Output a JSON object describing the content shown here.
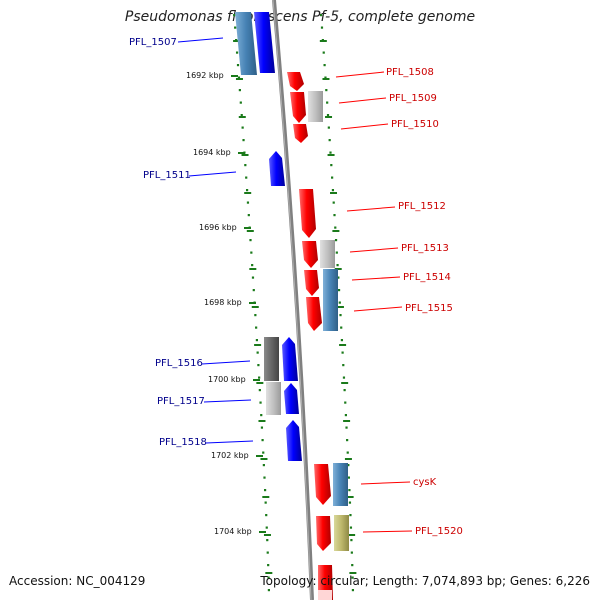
{
  "title": "Pseudomonas fluorescens Pf-5, complete genome",
  "accession": "Accession: NC_004129",
  "topology": "Topology: circular; Length: 7,074,893 bp; Genes: 6,226",
  "scale": [
    {
      "label": "1692 kbp"
    },
    {
      "label": "1694 kbp"
    },
    {
      "label": "1696 kbp"
    },
    {
      "label": "1698 kbp"
    },
    {
      "label": "1700 kbp"
    },
    {
      "label": "1702 kbp"
    },
    {
      "label": "1704 kbp"
    }
  ],
  "genes_left": [
    {
      "name": "PFL_1507"
    },
    {
      "name": "PFL_1511"
    },
    {
      "name": "PFL_1516"
    },
    {
      "name": "PFL_1517"
    },
    {
      "name": "PFL_1518"
    }
  ],
  "genes_right": [
    {
      "name": "PFL_1508"
    },
    {
      "name": "PFL_1509"
    },
    {
      "name": "PFL_1510"
    },
    {
      "name": "PFL_1512"
    },
    {
      "name": "PFL_1513"
    },
    {
      "name": "PFL_1514"
    },
    {
      "name": "PFL_1515"
    },
    {
      "name": "cysK"
    },
    {
      "name": "PFL_1520"
    }
  ],
  "colors": {
    "forward": "#ff0000",
    "reverse": "#0000ff",
    "left_label": "#00008b",
    "right_label": "#cc0000",
    "backbone": "#808080",
    "tick": "#1a7a1a"
  }
}
